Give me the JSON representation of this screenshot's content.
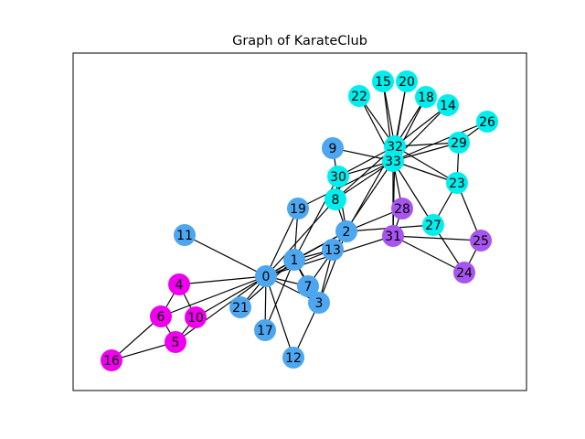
{
  "title": "Graph of KarateClub",
  "colors": {
    "community_a": "#4da6f0",
    "community_b": "#00eeee",
    "community_c": "#ee00ee",
    "community_d": "#a855f0",
    "frame": "#000000",
    "edge": "#000000"
  },
  "nodes": [
    {
      "id": 0,
      "label": "0",
      "community": "community_a"
    },
    {
      "id": 1,
      "label": "1",
      "community": "community_a"
    },
    {
      "id": 2,
      "label": "2",
      "community": "community_a"
    },
    {
      "id": 3,
      "label": "3",
      "community": "community_a"
    },
    {
      "id": 4,
      "label": "4",
      "community": "community_c"
    },
    {
      "id": 5,
      "label": "5",
      "community": "community_c"
    },
    {
      "id": 6,
      "label": "6",
      "community": "community_c"
    },
    {
      "id": 7,
      "label": "7",
      "community": "community_a"
    },
    {
      "id": 8,
      "label": "8",
      "community": "community_b"
    },
    {
      "id": 9,
      "label": "9",
      "community": "community_a"
    },
    {
      "id": 10,
      "label": "10",
      "community": "community_c"
    },
    {
      "id": 11,
      "label": "11",
      "community": "community_a"
    },
    {
      "id": 12,
      "label": "12",
      "community": "community_a"
    },
    {
      "id": 13,
      "label": "13",
      "community": "community_a"
    },
    {
      "id": 14,
      "label": "14",
      "community": "community_b"
    },
    {
      "id": 15,
      "label": "15",
      "community": "community_b"
    },
    {
      "id": 16,
      "label": "16",
      "community": "community_c"
    },
    {
      "id": 17,
      "label": "17",
      "community": "community_a"
    },
    {
      "id": 18,
      "label": "18",
      "community": "community_b"
    },
    {
      "id": 19,
      "label": "19",
      "community": "community_a"
    },
    {
      "id": 20,
      "label": "20",
      "community": "community_b"
    },
    {
      "id": 21,
      "label": "21",
      "community": "community_a"
    },
    {
      "id": 22,
      "label": "22",
      "community": "community_b"
    },
    {
      "id": 23,
      "label": "23",
      "community": "community_b"
    },
    {
      "id": 24,
      "label": "24",
      "community": "community_d"
    },
    {
      "id": 25,
      "label": "25",
      "community": "community_d"
    },
    {
      "id": 26,
      "label": "26",
      "community": "community_b"
    },
    {
      "id": 27,
      "label": "27",
      "community": "community_b"
    },
    {
      "id": 28,
      "label": "28",
      "community": "community_d"
    },
    {
      "id": 29,
      "label": "29",
      "community": "community_b"
    },
    {
      "id": 30,
      "label": "30",
      "community": "community_b"
    },
    {
      "id": 31,
      "label": "31",
      "community": "community_d"
    },
    {
      "id": 32,
      "label": "32",
      "community": "community_b"
    },
    {
      "id": 33,
      "label": "33",
      "community": "community_b"
    }
  ],
  "edges": [
    [
      0,
      1
    ],
    [
      0,
      2
    ],
    [
      0,
      3
    ],
    [
      0,
      4
    ],
    [
      0,
      5
    ],
    [
      0,
      6
    ],
    [
      0,
      7
    ],
    [
      0,
      8
    ],
    [
      0,
      10
    ],
    [
      0,
      11
    ],
    [
      0,
      12
    ],
    [
      0,
      13
    ],
    [
      0,
      17
    ],
    [
      0,
      19
    ],
    [
      0,
      21
    ],
    [
      0,
      31
    ],
    [
      1,
      2
    ],
    [
      1,
      3
    ],
    [
      1,
      7
    ],
    [
      1,
      13
    ],
    [
      1,
      17
    ],
    [
      1,
      19
    ],
    [
      1,
      21
    ],
    [
      1,
      30
    ],
    [
      2,
      3
    ],
    [
      2,
      7
    ],
    [
      2,
      8
    ],
    [
      2,
      9
    ],
    [
      2,
      13
    ],
    [
      2,
      27
    ],
    [
      2,
      28
    ],
    [
      2,
      32
    ],
    [
      3,
      7
    ],
    [
      3,
      12
    ],
    [
      3,
      13
    ],
    [
      4,
      6
    ],
    [
      4,
      10
    ],
    [
      5,
      6
    ],
    [
      5,
      10
    ],
    [
      5,
      16
    ],
    [
      6,
      16
    ],
    [
      8,
      30
    ],
    [
      8,
      32
    ],
    [
      8,
      33
    ],
    [
      9,
      33
    ],
    [
      13,
      33
    ],
    [
      14,
      32
    ],
    [
      14,
      33
    ],
    [
      15,
      32
    ],
    [
      15,
      33
    ],
    [
      18,
      32
    ],
    [
      18,
      33
    ],
    [
      19,
      33
    ],
    [
      20,
      32
    ],
    [
      20,
      33
    ],
    [
      22,
      32
    ],
    [
      22,
      33
    ],
    [
      23,
      25
    ],
    [
      23,
      27
    ],
    [
      23,
      29
    ],
    [
      23,
      32
    ],
    [
      23,
      33
    ],
    [
      24,
      25
    ],
    [
      24,
      27
    ],
    [
      24,
      31
    ],
    [
      25,
      31
    ],
    [
      26,
      29
    ],
    [
      26,
      33
    ],
    [
      27,
      33
    ],
    [
      28,
      31
    ],
    [
      28,
      33
    ],
    [
      29,
      32
    ],
    [
      29,
      33
    ],
    [
      30,
      32
    ],
    [
      30,
      33
    ],
    [
      31,
      32
    ],
    [
      31,
      33
    ],
    [
      32,
      33
    ]
  ]
}
